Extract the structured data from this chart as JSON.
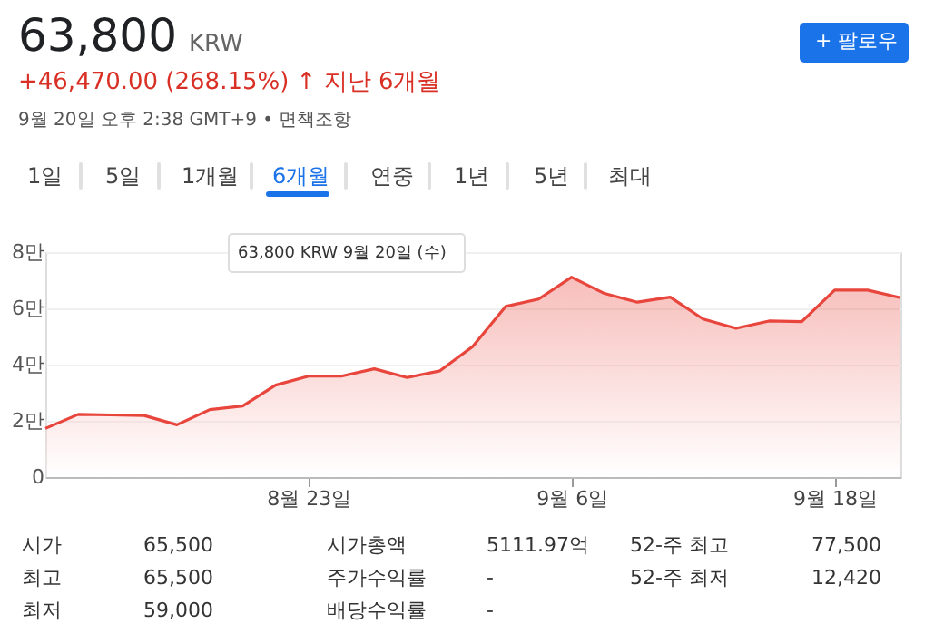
{
  "chart_data": {
    "type": "area",
    "title": "63,800",
    "subtitle": "+46,470.00 (268.15%) ↑ 지난 6개월",
    "categories": [
      null,
      null,
      null,
      null,
      null,
      null,
      null,
      null,
      "8월 23일",
      null,
      null,
      null,
      null,
      null,
      null,
      null,
      "9월 6일",
      null,
      null,
      null,
      null,
      null,
      null,
      null,
      "9월 18일",
      null,
      null
    ],
    "series": [
      {
        "color": "#e8453c",
        "values": [
          1.73,
          2.23,
          2.21,
          2.19,
          1.86,
          2.4,
          2.53,
          3.27,
          3.59,
          3.59,
          3.85,
          3.54,
          3.78,
          4.65,
          6.07,
          6.33,
          7.11,
          6.53,
          6.22,
          6.4,
          5.62,
          5.29,
          5.55,
          5.53,
          6.65,
          6.65,
          6.38
        ]
      }
    ],
    "ylim": [
      0,
      8
    ],
    "yticks": [
      0,
      {
        "value": 2,
        "label": "2만"
      },
      {
        "value": 4,
        "label": "4만"
      },
      {
        "value": 6,
        "label": "6만"
      },
      {
        "value": 8,
        "label": "8만"
      }
    ],
    "grid": "y",
    "annotations": [
      "KRW",
      "9월 20일 오후 2:38 GMT+9 • 면책조항",
      "+ 팔로우",
      "1일",
      "5일",
      "1개월",
      "6개월",
      "연중",
      "1년",
      "5년",
      "최대",
      "63,800 KRW  9월 20일 (수)",
      "시가",
      "65,500",
      "최고",
      "65,500",
      "최저",
      "59,000",
      "시가총액",
      "5111.97억",
      "주가수익률",
      "-",
      "배당수익률",
      "-",
      "52-주 최고",
      "77,500",
      "52-주 최저",
      "12,420"
    ]
  }
}
